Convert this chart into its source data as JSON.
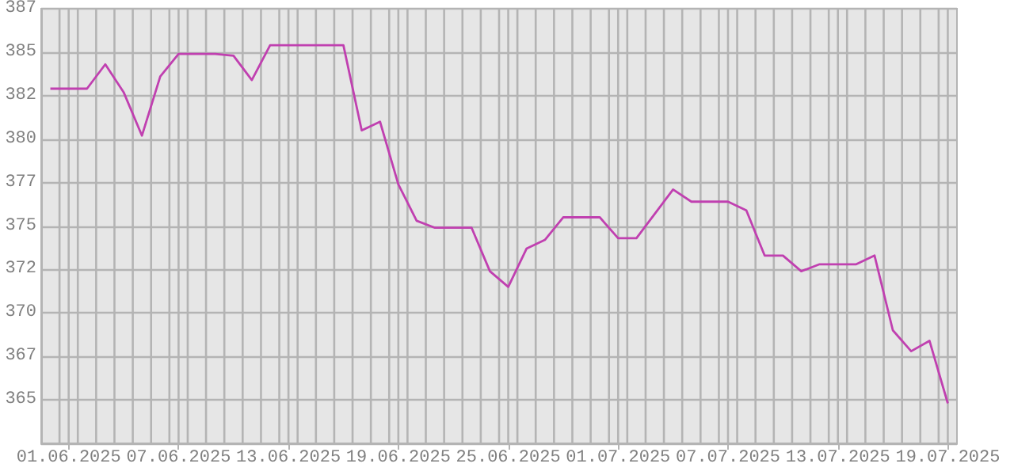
{
  "chart_data": {
    "type": "line",
    "color": "#c040b0",
    "grid": true,
    "x": [
      "2025-05-31",
      "2025-06-01",
      "2025-06-02",
      "2025-06-03",
      "2025-06-04",
      "2025-06-05",
      "2025-06-06",
      "2025-06-07",
      "2025-06-08",
      "2025-06-09",
      "2025-06-10",
      "2025-06-11",
      "2025-06-12",
      "2025-06-13",
      "2025-06-14",
      "2025-06-15",
      "2025-06-16",
      "2025-06-17",
      "2025-06-18",
      "2025-06-19",
      "2025-06-20",
      "2025-06-21",
      "2025-06-22",
      "2025-06-23",
      "2025-06-24",
      "2025-06-25",
      "2025-06-26",
      "2025-06-27",
      "2025-06-28",
      "2025-06-29",
      "2025-06-30",
      "2025-07-01",
      "2025-07-02",
      "2025-07-03",
      "2025-07-04",
      "2025-07-05",
      "2025-07-06",
      "2025-07-07",
      "2025-07-08",
      "2025-07-09",
      "2025-07-10",
      "2025-07-11",
      "2025-07-12",
      "2025-07-13",
      "2025-07-14",
      "2025-07-15",
      "2025-07-16",
      "2025-07-17",
      "2025-07-18",
      "2025-07-19"
    ],
    "values": [
      382.9,
      382.9,
      382.9,
      384.3,
      382.7,
      380.2,
      383.6,
      384.9,
      384.9,
      384.9,
      384.8,
      383.4,
      385.4,
      385.4,
      385.4,
      385.4,
      385.4,
      380.5,
      381.0,
      377.4,
      375.3,
      374.9,
      374.9,
      374.9,
      372.4,
      371.5,
      373.7,
      374.2,
      375.5,
      375.5,
      375.5,
      374.3,
      374.3,
      375.7,
      377.1,
      376.4,
      376.4,
      376.4,
      375.9,
      373.3,
      373.3,
      372.4,
      372.8,
      372.8,
      372.8,
      373.3,
      369.0,
      367.8,
      368.4,
      364.8
    ],
    "xlim": [
      "2025-05-30T12:00",
      "2025-07-19T12:00"
    ],
    "xticks": [
      {
        "value": "2025-06-01",
        "label": "01.06.2025"
      },
      {
        "value": "2025-06-07",
        "label": "07.06.2025"
      },
      {
        "value": "2025-06-13",
        "label": "13.06.2025"
      },
      {
        "value": "2025-06-19",
        "label": "19.06.2025"
      },
      {
        "value": "2025-06-25",
        "label": "25.06.2025"
      },
      {
        "value": "2025-07-01",
        "label": "01.07.2025"
      },
      {
        "value": "2025-07-07",
        "label": "07.07.2025"
      },
      {
        "value": "2025-07-13",
        "label": "13.07.2025"
      },
      {
        "value": "2025-07-19",
        "label": "19.07.2025"
      },
      {
        "value": "2025-05-31T12:00",
        "label": null
      },
      {
        "value": "2025-06-01T12:00",
        "label": null
      },
      {
        "value": "2025-06-02T12:00",
        "label": null
      },
      {
        "value": "2025-06-03T12:00",
        "label": null
      },
      {
        "value": "2025-06-04T12:00",
        "label": null
      },
      {
        "value": "2025-06-05T12:00",
        "label": null
      },
      {
        "value": "2025-06-06T12:00",
        "label": null
      },
      {
        "value": "2025-06-07T12:00",
        "label": null
      },
      {
        "value": "2025-06-08T12:00",
        "label": null
      },
      {
        "value": "2025-06-09T12:00",
        "label": null
      },
      {
        "value": "2025-06-10T12:00",
        "label": null
      },
      {
        "value": "2025-06-11T12:00",
        "label": null
      },
      {
        "value": "2025-06-12T12:00",
        "label": null
      },
      {
        "value": "2025-06-13T12:00",
        "label": null
      },
      {
        "value": "2025-06-14T12:00",
        "label": null
      },
      {
        "value": "2025-06-15T12:00",
        "label": null
      },
      {
        "value": "2025-06-16T12:00",
        "label": null
      },
      {
        "value": "2025-06-17T12:00",
        "label": null
      },
      {
        "value": "2025-06-18T12:00",
        "label": null
      },
      {
        "value": "2025-06-19T12:00",
        "label": null
      },
      {
        "value": "2025-06-20T12:00",
        "label": null
      },
      {
        "value": "2025-06-21T12:00",
        "label": null
      },
      {
        "value": "2025-06-22T12:00",
        "label": null
      },
      {
        "value": "2025-06-23T12:00",
        "label": null
      },
      {
        "value": "2025-06-24T12:00",
        "label": null
      },
      {
        "value": "2025-06-25T12:00",
        "label": null
      },
      {
        "value": "2025-06-26T12:00",
        "label": null
      },
      {
        "value": "2025-06-27T12:00",
        "label": null
      },
      {
        "value": "2025-06-28T12:00",
        "label": null
      },
      {
        "value": "2025-06-29T12:00",
        "label": null
      },
      {
        "value": "2025-06-30T12:00",
        "label": null
      },
      {
        "value": "2025-07-01T12:00",
        "label": null
      },
      {
        "value": "2025-07-02T12:00",
        "label": null
      },
      {
        "value": "2025-07-03T12:00",
        "label": null
      },
      {
        "value": "2025-07-04T12:00",
        "label": null
      },
      {
        "value": "2025-07-05T12:00",
        "label": null
      },
      {
        "value": "2025-07-06T12:00",
        "label": null
      },
      {
        "value": "2025-07-07T12:00",
        "label": null
      },
      {
        "value": "2025-07-08T12:00",
        "label": null
      },
      {
        "value": "2025-07-09T12:00",
        "label": null
      },
      {
        "value": "2025-07-10T12:00",
        "label": null
      },
      {
        "value": "2025-07-11T12:00",
        "label": null
      },
      {
        "value": "2025-07-12T12:00",
        "label": null
      },
      {
        "value": "2025-07-13T12:00",
        "label": null
      },
      {
        "value": "2025-07-14T12:00",
        "label": null
      },
      {
        "value": "2025-07-15T12:00",
        "label": null
      },
      {
        "value": "2025-07-16T12:00",
        "label": null
      },
      {
        "value": "2025-07-17T12:00",
        "label": null
      },
      {
        "value": "2025-07-18T12:00",
        "label": null
      }
    ],
    "ylim": [
      362.5,
      387.5
    ],
    "yticks": [
      {
        "value": 362.5,
        "label": null
      },
      {
        "value": 365,
        "label": "365"
      },
      {
        "value": 367.5,
        "label": "367"
      },
      {
        "value": 370,
        "label": "370"
      },
      {
        "value": 372.5,
        "label": "372"
      },
      {
        "value": 375,
        "label": "375"
      },
      {
        "value": 377.5,
        "label": "377"
      },
      {
        "value": 380,
        "label": "380"
      },
      {
        "value": 382.5,
        "label": "382"
      },
      {
        "value": 385,
        "label": "385"
      },
      {
        "value": 387.5,
        "label": "387"
      }
    ]
  }
}
